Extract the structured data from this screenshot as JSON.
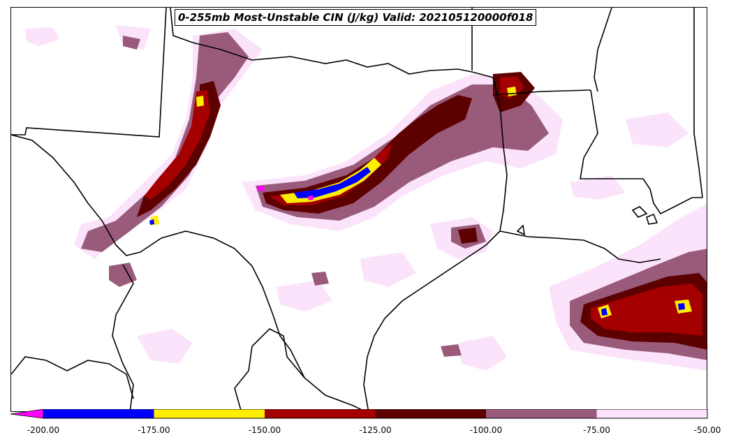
{
  "title": "0-255mb Most-Unstable CIN (J/kg) Valid: 202105120000f018",
  "colorbar": {
    "ticks": [
      "-200.00",
      "-175.00",
      "-150.00",
      "-125.00",
      "-100.00",
      "-75.00",
      "-50.00"
    ],
    "bins": [
      {
        "min": -200,
        "max": -175,
        "color": "#0000ff"
      },
      {
        "min": -175,
        "max": -150,
        "color": "#ffee00"
      },
      {
        "min": -150,
        "max": -125,
        "color": "#a50000"
      },
      {
        "min": -125,
        "max": -100,
        "color": "#5c0000"
      },
      {
        "min": -100,
        "max": -75,
        "color": "#9a5a7a"
      },
      {
        "min": -75,
        "max": -50,
        "color": "#fbe3fb"
      }
    ],
    "under_color": "#ff00ff",
    "range": [
      -200,
      -50
    ]
  },
  "colors": {
    "boundary": "#000000",
    "background": "#ffffff"
  }
}
